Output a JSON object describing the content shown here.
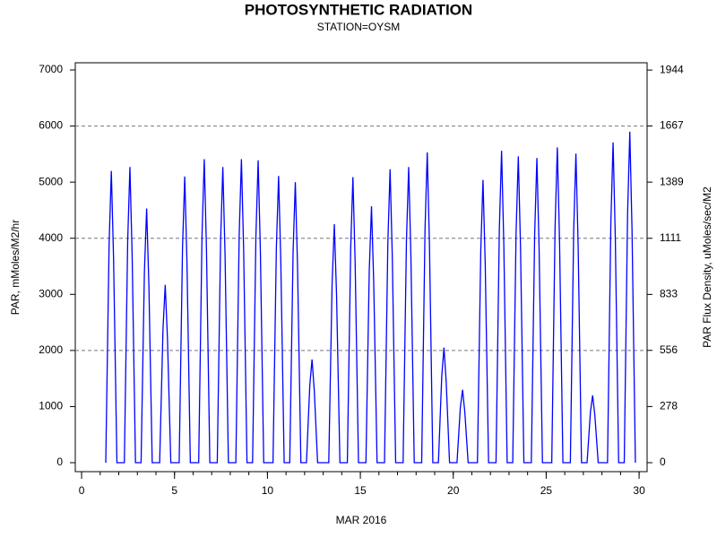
{
  "chart_data": {
    "type": "line",
    "title": "PHOTOSYNTHETIC RADIATION",
    "subtitle": "STATION=OYSM",
    "x_label": "MAR 2016",
    "y_label": "PAR, mMoles/M2/hr",
    "y2_label": "PAR Flux Density, uMoles/sec/M2",
    "xlim": [
      -0.34,
      30.43
    ],
    "xticks": [
      0,
      5,
      10,
      15,
      20,
      25,
      30
    ],
    "xminorticks": [
      0,
      1,
      2,
      3,
      4,
      5,
      6,
      7,
      8,
      9,
      10,
      11,
      12,
      13,
      14,
      15,
      16,
      17,
      18,
      19,
      20,
      21,
      22,
      23,
      24,
      25,
      26,
      27,
      28,
      29,
      30
    ],
    "ylim": [
      -160,
      7128
    ],
    "yticks": [
      0,
      1000,
      2000,
      3000,
      4000,
      5000,
      6000,
      7000
    ],
    "y2lim": [
      -44.4,
      1980
    ],
    "y2ticks": [
      0,
      278,
      556,
      833,
      1111,
      1389,
      1667,
      1944
    ],
    "gridlines": [
      2000,
      4000,
      6000
    ],
    "series": [
      {
        "color": "#0000ff",
        "x": [
          1.3,
          1.48,
          1.6,
          1.72,
          1.9,
          2.3,
          2.48,
          2.6,
          2.72,
          2.9,
          3.2,
          3.38,
          3.5,
          3.62,
          3.8,
          4.2,
          4.38,
          4.5,
          4.62,
          4.8,
          5.25,
          5.43,
          5.55,
          5.67,
          5.85,
          6.3,
          6.48,
          6.6,
          6.72,
          6.9,
          7.3,
          7.48,
          7.6,
          7.72,
          7.9,
          8.3,
          8.48,
          8.6,
          8.72,
          8.9,
          9.2,
          9.38,
          9.5,
          9.62,
          9.8,
          10.3,
          10.48,
          10.6,
          10.72,
          10.9,
          11.2,
          11.38,
          11.5,
          11.62,
          11.8,
          12.1,
          12.28,
          12.4,
          12.52,
          12.7,
          13.3,
          13.48,
          13.6,
          13.72,
          13.9,
          14.3,
          14.48,
          14.6,
          14.72,
          14.9,
          15.3,
          15.48,
          15.6,
          15.72,
          15.9,
          16.3,
          16.48,
          16.6,
          16.72,
          16.9,
          17.3,
          17.48,
          17.6,
          17.72,
          17.9,
          18.3,
          18.48,
          18.6,
          18.72,
          18.9,
          19.2,
          19.38,
          19.5,
          19.62,
          19.8,
          20.2,
          20.38,
          20.5,
          20.62,
          20.8,
          21.3,
          21.48,
          21.6,
          21.72,
          21.9,
          22.3,
          22.48,
          22.6,
          22.72,
          22.9,
          23.2,
          23.38,
          23.5,
          23.62,
          23.8,
          24.2,
          24.38,
          24.5,
          24.62,
          24.8,
          25.3,
          25.48,
          25.6,
          25.72,
          25.9,
          26.3,
          26.48,
          26.6,
          26.72,
          26.9,
          27.2,
          27.38,
          27.5,
          27.62,
          27.8,
          28.3,
          28.48,
          28.6,
          28.72,
          28.9,
          29.2,
          29.38,
          29.5,
          29.62,
          29.8
        ],
        "values": [
          0,
          3900,
          5200,
          3640,
          0,
          0,
          3950,
          5270,
          3690,
          0,
          0,
          3400,
          4530,
          3170,
          0,
          0,
          2380,
          3170,
          2220,
          0,
          0,
          3830,
          5100,
          3570,
          0,
          0,
          4060,
          5410,
          3790,
          0,
          0,
          3950,
          5270,
          3690,
          0,
          0,
          4060,
          5410,
          3790,
          0,
          0,
          4040,
          5390,
          3770,
          0,
          0,
          3830,
          5110,
          3580,
          0,
          0,
          3750,
          5000,
          3500,
          0,
          0,
          1380,
          1840,
          1290,
          0,
          0,
          3190,
          4250,
          2980,
          0,
          0,
          3820,
          5090,
          3560,
          0,
          0,
          3430,
          4570,
          3200,
          0,
          0,
          3920,
          5230,
          3660,
          0,
          0,
          3950,
          5270,
          3690,
          0,
          0,
          4150,
          5530,
          3870,
          0,
          0,
          1540,
          2050,
          1440,
          0,
          0,
          980,
          1300,
          910,
          0,
          0,
          3780,
          5040,
          3530,
          0,
          0,
          4170,
          5560,
          3890,
          0,
          0,
          4100,
          5460,
          3820,
          0,
          0,
          4070,
          5430,
          3800,
          0,
          0,
          4220,
          5620,
          3930,
          0,
          0,
          4130,
          5510,
          3860,
          0,
          0,
          900,
          1200,
          840,
          0,
          0,
          4280,
          5710,
          4000,
          0,
          0,
          4430,
          5900,
          4130,
          0
        ]
      }
    ]
  }
}
